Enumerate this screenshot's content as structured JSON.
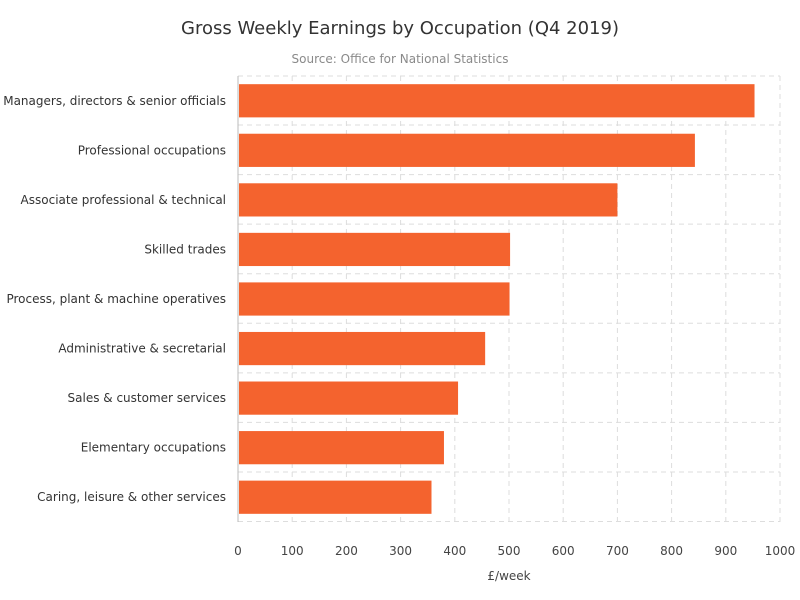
{
  "chart_data": {
    "type": "bar",
    "orientation": "horizontal",
    "title": "Gross Weekly Earnings by Occupation (Q4 2019)",
    "subtitle": "Source: Office for National Statistics",
    "xlabel": "£/week",
    "ylabel": "",
    "xlim": [
      0,
      1000
    ],
    "xticks": [
      0,
      100,
      200,
      300,
      400,
      500,
      600,
      700,
      800,
      900,
      1000
    ],
    "grid": true,
    "bar_color": "#f4632e",
    "categories": [
      "Managers, directors & senior officials",
      "Professional occupations",
      "Associate professional & technical",
      "Skilled trades",
      "Process, plant & machine operatives",
      "Administrative & secretarial",
      "Sales & customer services",
      "Elementary occupations",
      "Caring, leisure & other services"
    ],
    "values": [
      953,
      843,
      700,
      502,
      501,
      456,
      406,
      380,
      357
    ]
  }
}
